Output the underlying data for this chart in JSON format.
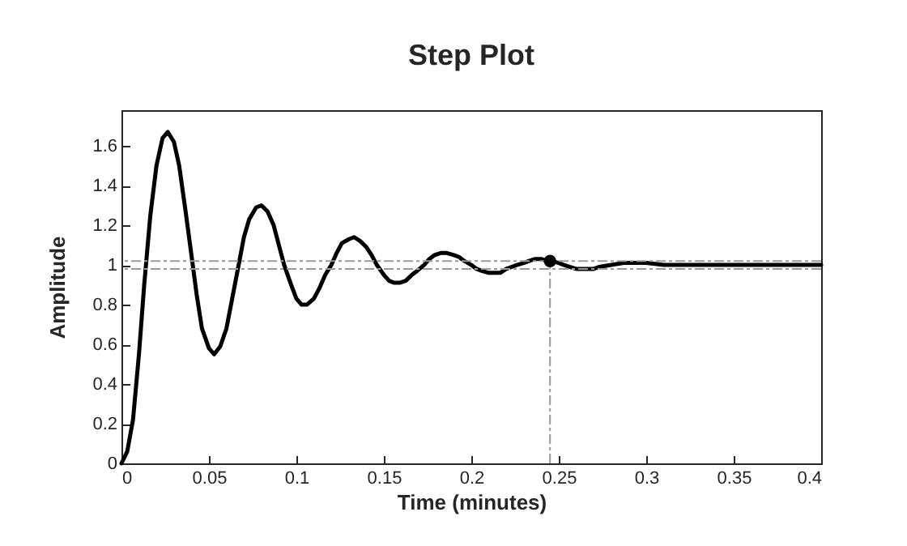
{
  "chart_data": {
    "type": "line",
    "title": "Step Plot",
    "xlabel": "Time (minutes)",
    "ylabel": "Amplitude",
    "xlim": [
      0,
      0.4
    ],
    "xticks": [
      0,
      0.05,
      0.1,
      0.15,
      0.2,
      0.25,
      0.3,
      0.35,
      0.4
    ],
    "ylim": [
      0,
      1.78
    ],
    "yticks": [
      0,
      0.2,
      0.4,
      0.6,
      0.8,
      1,
      1.2,
      1.4,
      1.6
    ],
    "grid": false,
    "marker": "none",
    "series": [
      {
        "color": "#000000",
        "x": [
          0,
          0.0033,
          0.0066,
          0.01,
          0.013,
          0.0165,
          0.02,
          0.0235,
          0.0265,
          0.03,
          0.033,
          0.0365,
          0.04,
          0.043,
          0.046,
          0.05,
          0.053,
          0.0565,
          0.06,
          0.0635,
          0.067,
          0.07,
          0.073,
          0.077,
          0.08,
          0.0835,
          0.087,
          0.09,
          0.093,
          0.097,
          0.1,
          0.103,
          0.106,
          0.11,
          0.113,
          0.1165,
          0.12,
          0.123,
          0.126,
          0.13,
          0.133,
          0.1365,
          0.14,
          0.143,
          0.146,
          0.15,
          0.153,
          0.156,
          0.159,
          0.1625,
          0.166,
          0.169,
          0.173,
          0.176,
          0.179,
          0.1825,
          0.186,
          0.19,
          0.193,
          0.196,
          0.2,
          0.203,
          0.206,
          0.21,
          0.213,
          0.2165,
          0.22,
          0.223,
          0.226,
          0.23,
          0.233,
          0.2365,
          0.24,
          0.243,
          0.246,
          0.25,
          0.253,
          0.2565,
          0.26,
          0.263,
          0.266,
          0.27,
          0.273,
          0.28,
          0.287,
          0.293,
          0.3,
          0.31,
          0.32,
          0.333,
          0.345,
          0.358,
          0.37,
          0.385,
          0.4
        ],
        "values": [
          0,
          0.06,
          0.22,
          0.55,
          0.9,
          1.25,
          1.5,
          1.64,
          1.67,
          1.62,
          1.5,
          1.28,
          1.05,
          0.85,
          0.68,
          0.58,
          0.55,
          0.59,
          0.68,
          0.84,
          1.0,
          1.14,
          1.23,
          1.29,
          1.3,
          1.27,
          1.2,
          1.1,
          1.0,
          0.9,
          0.83,
          0.8,
          0.8,
          0.83,
          0.88,
          0.95,
          1.0,
          1.06,
          1.11,
          1.13,
          1.14,
          1.12,
          1.09,
          1.05,
          1.0,
          0.95,
          0.92,
          0.91,
          0.91,
          0.92,
          0.95,
          0.97,
          1.0,
          1.03,
          1.05,
          1.06,
          1.06,
          1.05,
          1.04,
          1.02,
          1.0,
          0.98,
          0.97,
          0.96,
          0.96,
          0.96,
          0.98,
          0.99,
          1.0,
          1.01,
          1.02,
          1.03,
          1.03,
          1.02,
          1.02,
          1.01,
          1.0,
          0.99,
          0.98,
          0.98,
          0.98,
          0.98,
          0.99,
          1.0,
          1.01,
          1.01,
          1.01,
          1.0,
          1.0,
          1.0,
          1.0,
          1.0,
          1.0,
          1.0,
          1.0
        ]
      },
      {
        "type": "scatter",
        "marker": "circle",
        "color": "#000000",
        "x": [
          0.245
        ],
        "values": [
          1.02
        ]
      }
    ],
    "ref_lines": [
      {
        "axis": "y",
        "value": 1.02,
        "color": "#999999",
        "line_style": "dashed"
      },
      {
        "axis": "y",
        "value": 0.98,
        "color": "#999999",
        "line_style": "dashed"
      },
      {
        "axis": "x",
        "value": 0.245,
        "color": "#999999",
        "line_style": "dashed"
      }
    ]
  }
}
